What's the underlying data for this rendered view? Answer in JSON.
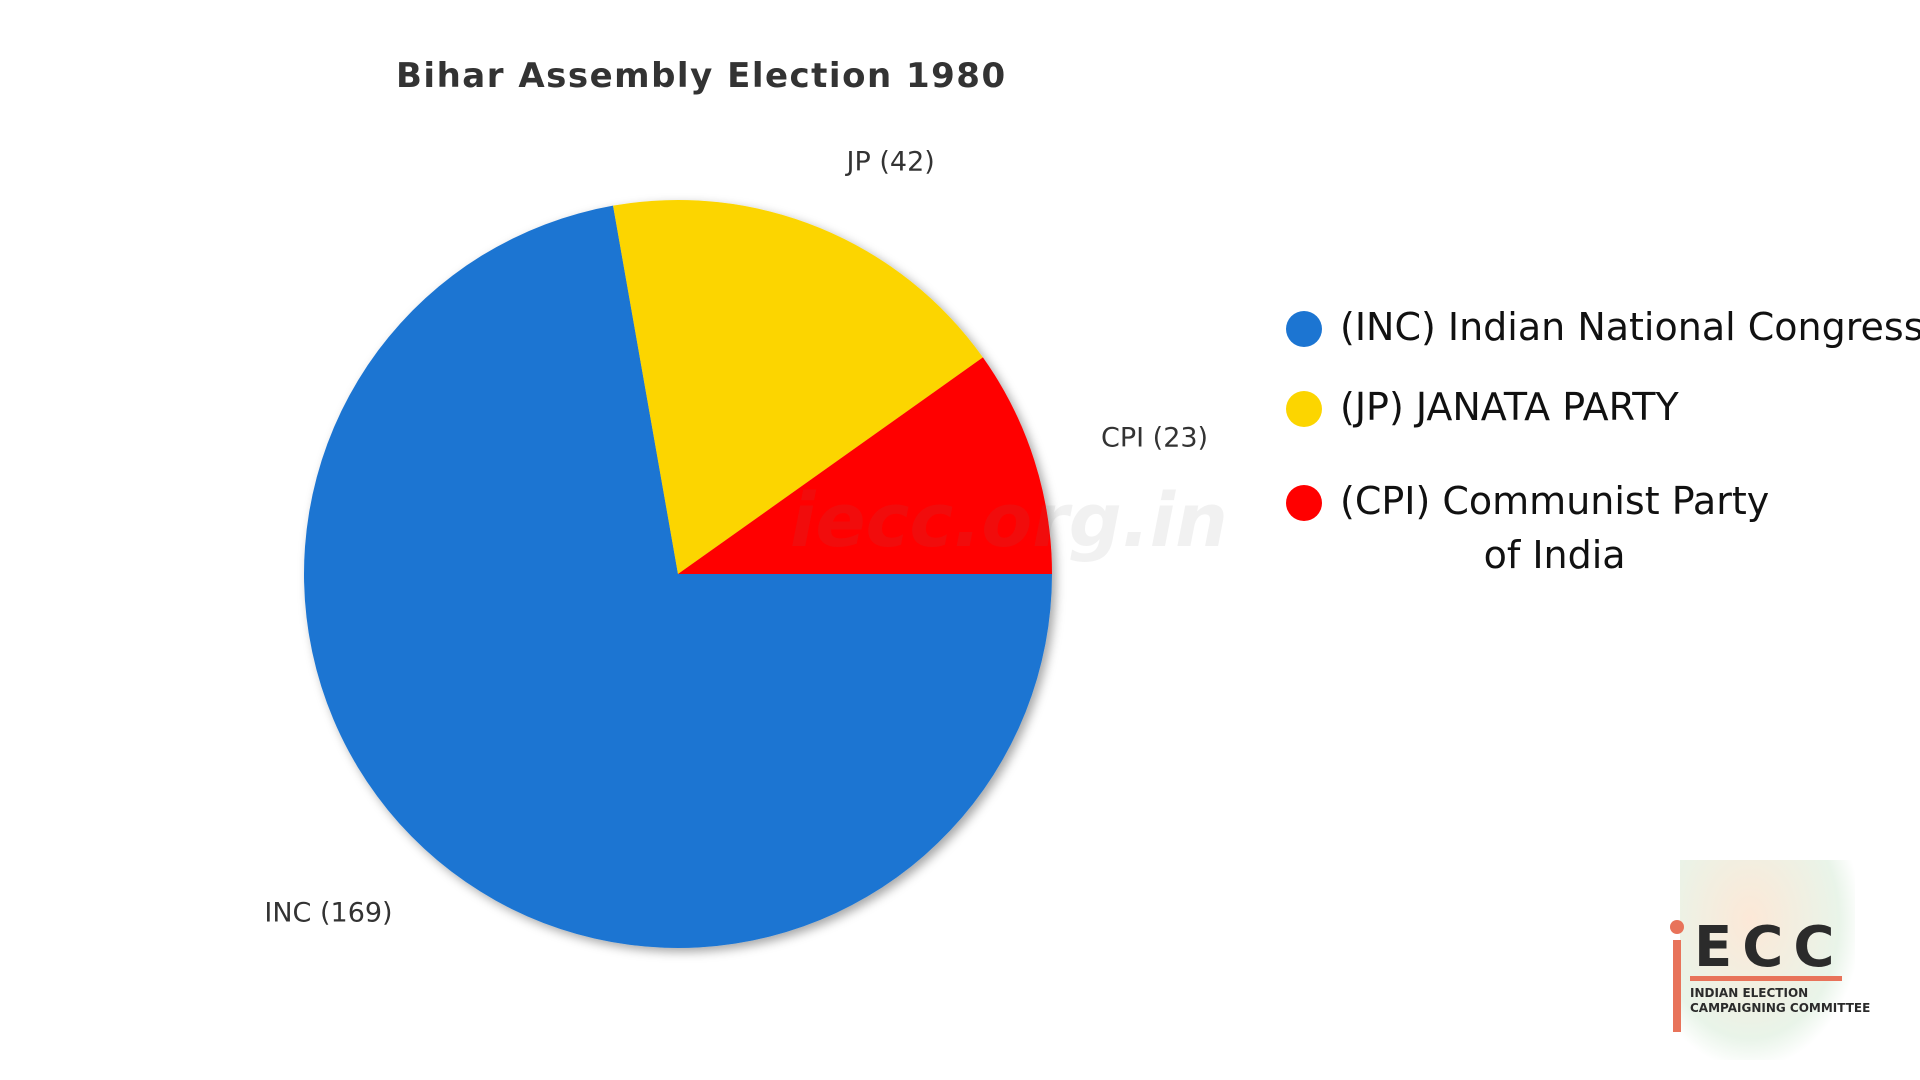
{
  "chart_data": {
    "type": "pie",
    "title": "Bihar Assembly Election 1980",
    "slices": [
      {
        "key": "inc",
        "label": "INC (169)",
        "value": 169,
        "color": "#1c75d2",
        "legend": "(INC) Indian National Congress"
      },
      {
        "key": "jp",
        "label": "JP (42)",
        "value": 42,
        "color": "#fcd500",
        "legend": "(JP) JANATA PARTY"
      },
      {
        "key": "cpi",
        "label": "CPI (23)",
        "value": 23,
        "color": "#ff0000",
        "legend_lines": [
          "(CPI) Communist Party",
          "of India"
        ]
      }
    ],
    "legend_position": "right"
  },
  "watermark": "iecc.org.in",
  "logo": {
    "letters": "ECC",
    "subtitle_lines": [
      "INDIAN ELECTION",
      "CAMPAIGNING COMMITTEE"
    ]
  }
}
